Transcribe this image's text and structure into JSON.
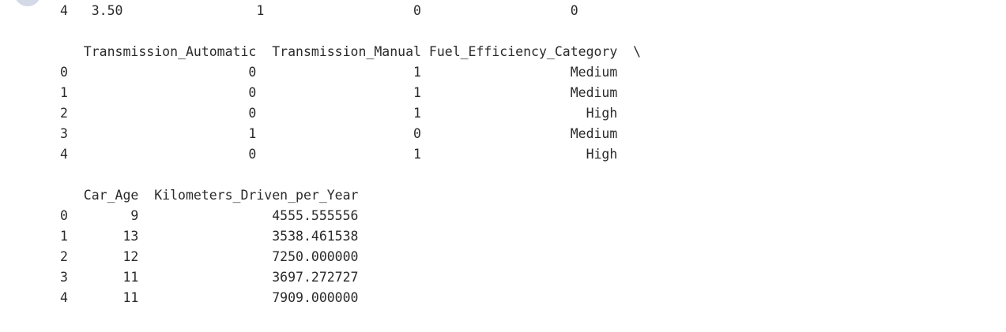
{
  "output": {
    "lines": [
      "4   3.50                 1                   0                   0",
      "",
      "   Transmission_Automatic  Transmission_Manual Fuel_Efficiency_Category  \\",
      "0                       0                    1                   Medium",
      "1                       0                    1                   Medium",
      "2                       0                    1                     High",
      "3                       1                    0                   Medium",
      "4                       0                    1                     High",
      "",
      "   Car_Age  Kilometers_Driven_per_Year",
      "0        9                 4555.555556",
      "1       13                 3538.461538",
      "2       12                 7250.000000",
      "3       11                 3697.272727",
      "4       11                 7909.000000"
    ]
  }
}
